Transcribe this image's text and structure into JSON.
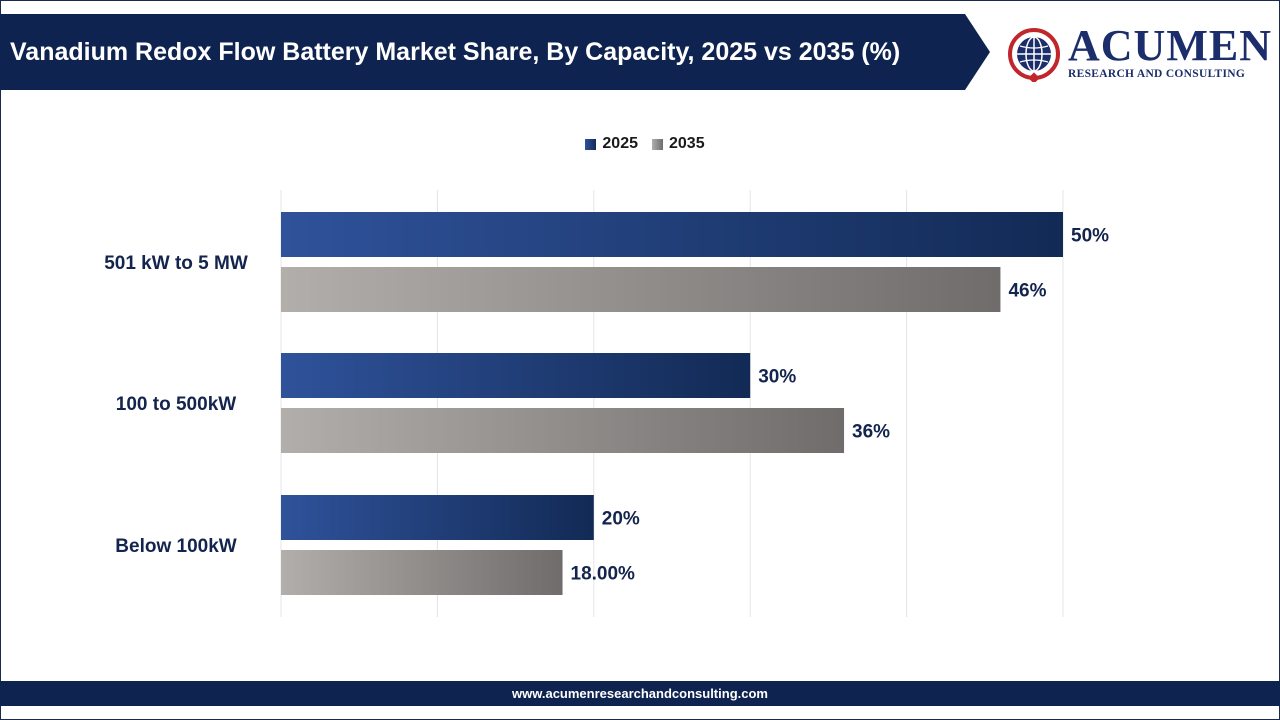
{
  "header": {
    "title": "Vanadium Redox Flow Battery Market Share, By Capacity, 2025 vs 2035 (%)"
  },
  "logo": {
    "word": "ACUMEN",
    "tagline": "RESEARCH AND CONSULTING",
    "icon": "globe-icon"
  },
  "footer": {
    "url": "www.acumenresearchandconsulting.com"
  },
  "colors": {
    "navy": "#0f2350",
    "series_2025_light": "#2f529a",
    "series_2025_dark": "#122a55",
    "series_2035_light": "#b2aeab",
    "series_2035_dark": "#706c6b"
  },
  "chart_data": {
    "type": "bar",
    "orientation": "horizontal",
    "categories": [
      "501 kW to 5 MW",
      "100 to 500kW",
      "Below 100kW"
    ],
    "series": [
      {
        "name": "2025",
        "values": [
          50,
          30,
          20
        ],
        "labels": [
          "50%",
          "30%",
          "20%"
        ]
      },
      {
        "name": "2035",
        "values": [
          46,
          36,
          18
        ],
        "labels": [
          "46%",
          "36%",
          "18.00%"
        ]
      }
    ],
    "xlim": [
      0,
      50
    ],
    "grid": true,
    "legend": "top-center"
  }
}
